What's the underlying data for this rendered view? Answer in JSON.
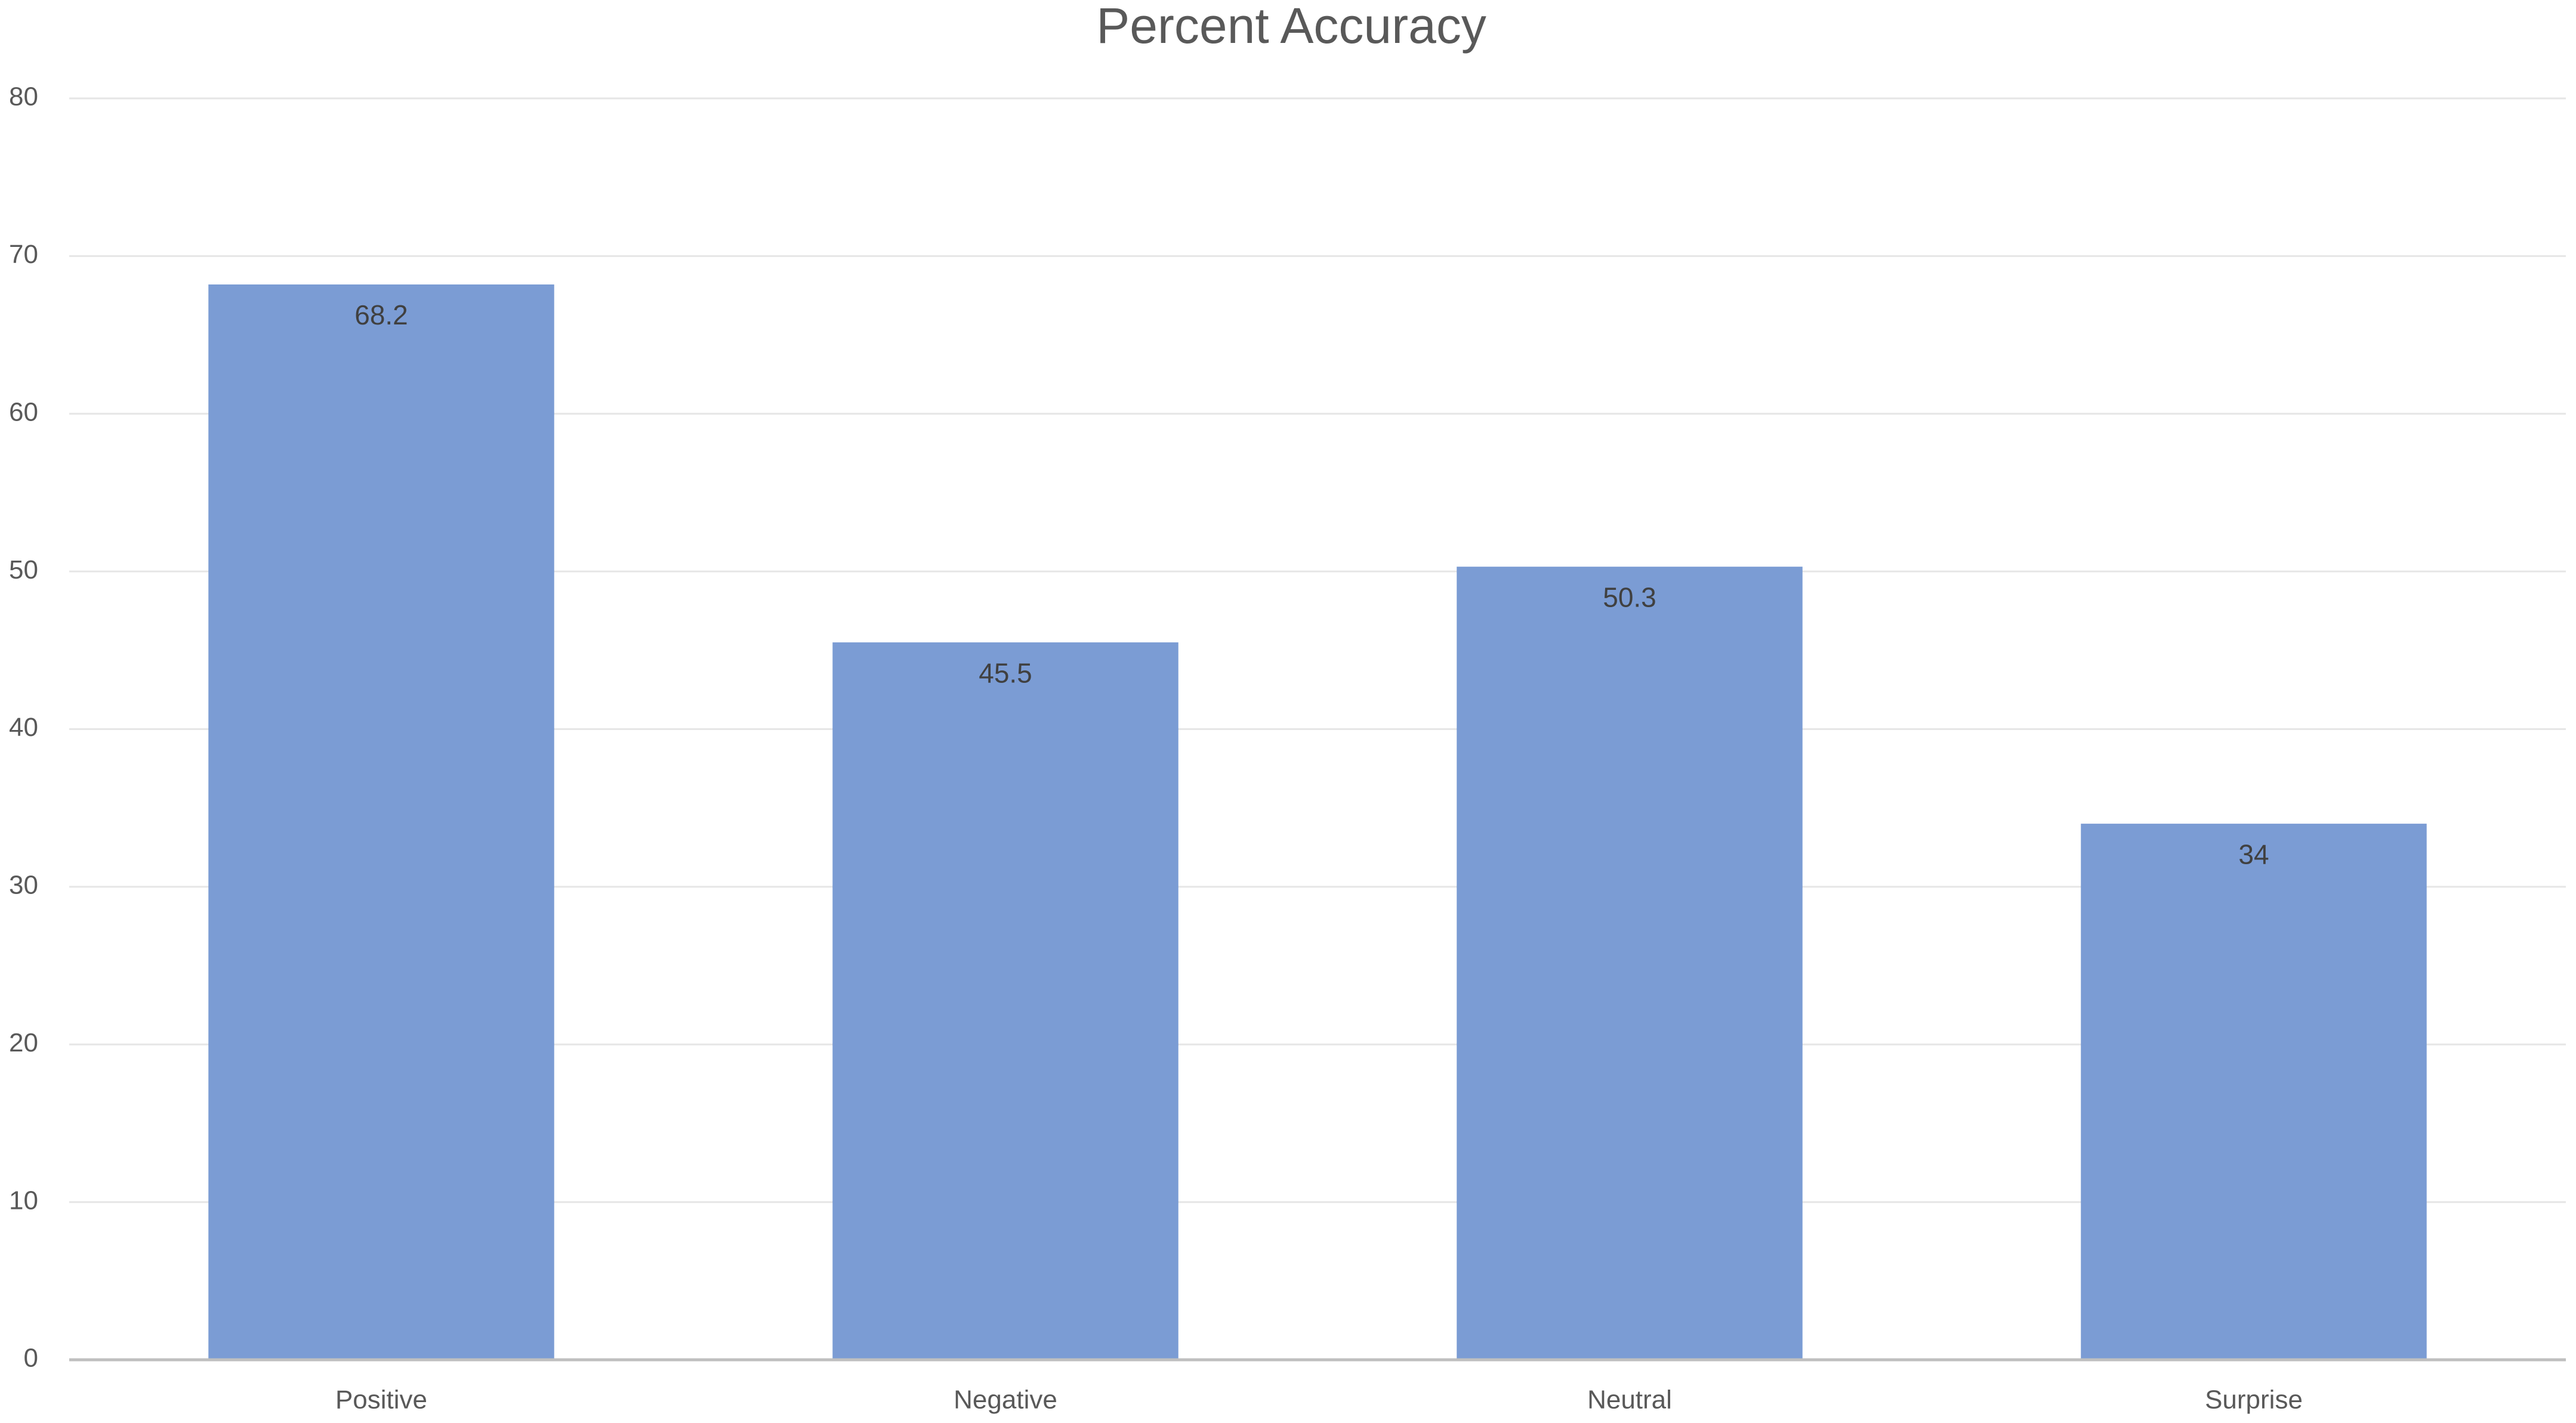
{
  "chart_data": {
    "type": "bar",
    "title": "Percent Accuracy",
    "categories": [
      "Positive",
      "Negative",
      "Neutral",
      "Surprise"
    ],
    "values": [
      68.2,
      45.5,
      50.3,
      34
    ],
    "color": "#7b9cd4",
    "ylim": [
      0,
      80
    ],
    "yticks": [
      0,
      10,
      20,
      30,
      40,
      50,
      60,
      70,
      80
    ],
    "grid": true
  }
}
